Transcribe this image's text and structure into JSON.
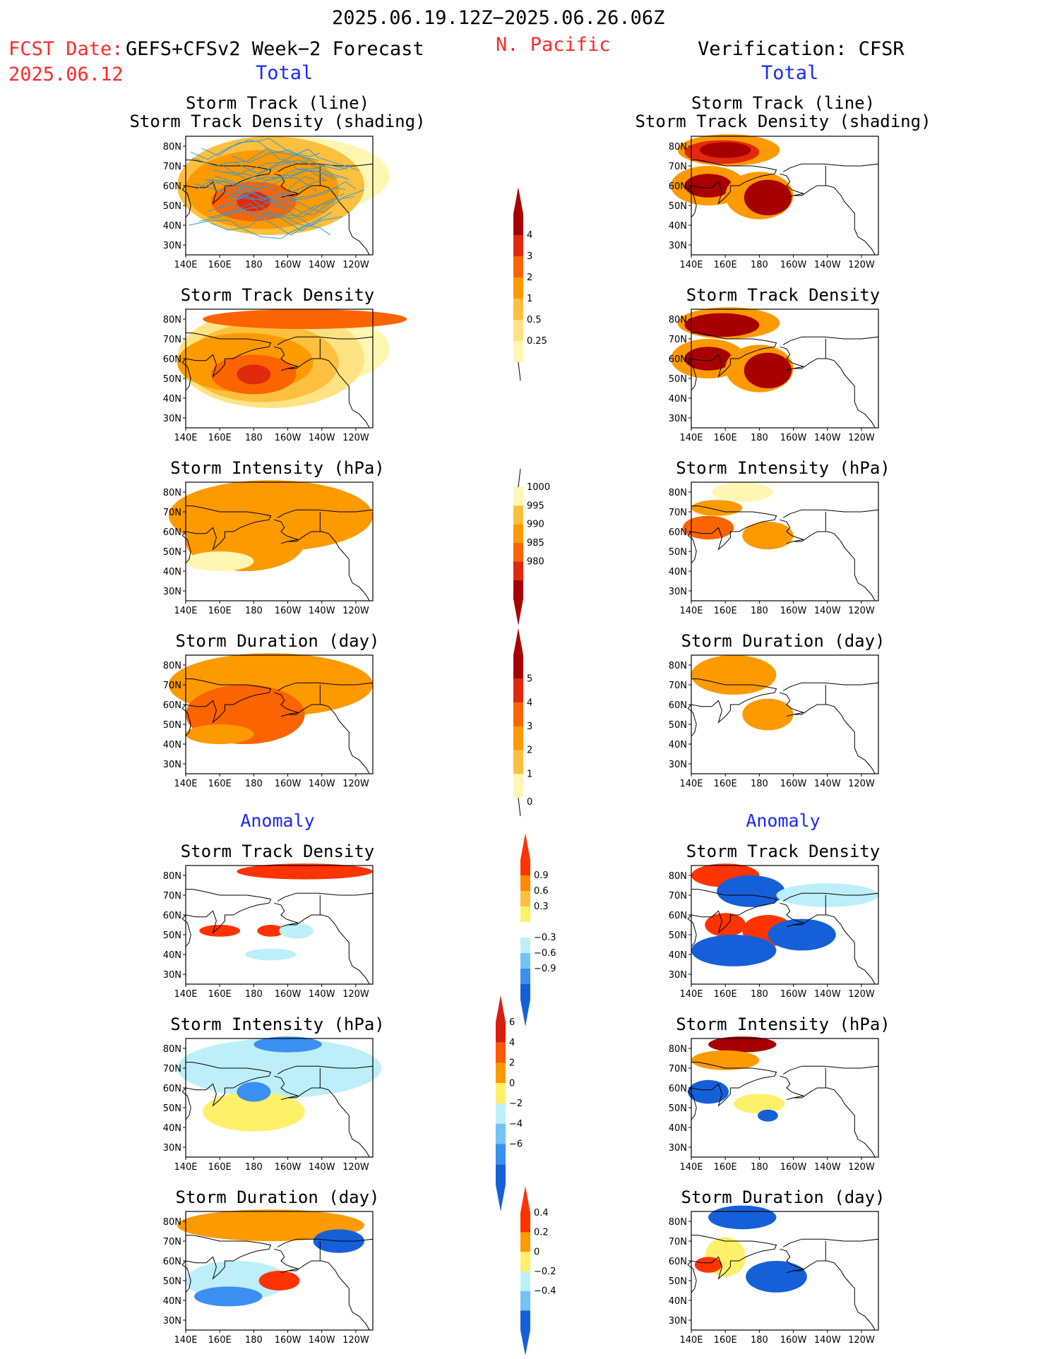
{
  "header": {
    "period": "2025.06.19.12Z−2025.06.26.06Z",
    "fcst_label": "FCST Date:",
    "fcst_model": "GEFS+CFSv2 Week−2 Forecast",
    "fcst_date": "2025.06.12",
    "region": "N. Pacific",
    "verification": "Verification: CFSR",
    "total_left": "Total",
    "total_right": "Total",
    "anomaly_left": "Anomaly",
    "anomaly_right": "Anomaly"
  },
  "panel_titles": {
    "track_line": "Storm Track (line)",
    "track_shading": "Storm Track Density (shading)",
    "density": "Storm Track Density",
    "intensity": "Storm Intensity (hPa)",
    "duration": "Storm Duration (day)"
  },
  "axes": {
    "lon_ticks": [
      "140E",
      "160E",
      "180",
      "160W",
      "140W",
      "120W"
    ],
    "lat_ticks": [
      "80N",
      "70N",
      "60N",
      "50N",
      "40N",
      "30N"
    ]
  },
  "colorbars": {
    "density": {
      "levels": [
        "0.25",
        "0.5",
        "1",
        "2",
        "3",
        "4"
      ],
      "colors": [
        "#fff6b4",
        "#ffe383",
        "#fdbf3e",
        "#fd9a00",
        "#fb6400",
        "#e12a0c",
        "#a80000"
      ]
    },
    "intensity": {
      "levels": [
        "1000",
        "995",
        "990",
        "985",
        "980"
      ],
      "colors": [
        "#fff6b4",
        "#fdbf3e",
        "#fd9a00",
        "#fb6400",
        "#e12a0c",
        "#a80000"
      ]
    },
    "duration": {
      "levels": [
        "5",
        "4",
        "3",
        "2",
        "1",
        "0"
      ],
      "colors": [
        "#a80000",
        "#e12a0c",
        "#fb6400",
        "#fd9a00",
        "#fdbf3e",
        "#fff6b4"
      ]
    },
    "anom_density": {
      "levels": [
        "0.9",
        "0.6",
        "0.3",
        "−0.3",
        "−0.6",
        "−0.9"
      ],
      "colors": [
        "#ff3300",
        "#fd8a00",
        "#fdbf3e",
        "#fff06a",
        "#ffffff",
        "#bdeffa",
        "#73c3f7",
        "#3a8ff0",
        "#1560d8"
      ]
    },
    "anom_intensity": {
      "levels": [
        "6",
        "4",
        "2",
        "0",
        "−2",
        "−4",
        "−6"
      ],
      "colors": [
        "#d81e10",
        "#fd5a00",
        "#fd9a00",
        "#fff06a",
        "#bdeffa",
        "#73c3f7",
        "#3a8ff0",
        "#1560d8"
      ]
    },
    "anom_duration": {
      "levels": [
        "0.4",
        "0.2",
        "0",
        "−0.2",
        "−0.4"
      ],
      "colors": [
        "#ff3300",
        "#fd9a00",
        "#fff06a",
        "#bdeffa",
        "#73c3f7",
        "#1560d8"
      ]
    }
  },
  "chart_data": [
    {
      "type": "heatmap",
      "panel": "forecast-total-storm-track-line",
      "title": "Storm Track (line) Storm Track Density (shading)",
      "x_range": [
        "140E",
        "110W"
      ],
      "y_range": [
        "25N",
        "85N"
      ],
      "peak_value": 3,
      "peak_location": "52N 180"
    },
    {
      "type": "heatmap",
      "panel": "verification-total-storm-track-line",
      "title": "Storm Track (line) Storm Track Density (shading)",
      "x_range": [
        "140E",
        "110W"
      ],
      "y_range": [
        "25N",
        "85N"
      ],
      "peak_value": 4,
      "peak_location": "52N 175W"
    },
    {
      "type": "heatmap",
      "panel": "forecast-total-density",
      "title": "Storm Track Density",
      "peak_value": 3,
      "peak_location": "52N 180"
    },
    {
      "type": "heatmap",
      "panel": "verification-total-density",
      "title": "Storm Track Density",
      "peak_value": 4,
      "peak_location": "52N 175W"
    },
    {
      "type": "heatmap",
      "panel": "forecast-total-intensity",
      "title": "Storm Intensity (hPa)",
      "min_value": 990,
      "max_value": 1000
    },
    {
      "type": "heatmap",
      "panel": "verification-total-intensity",
      "title": "Storm Intensity (hPa)",
      "min_value": 985,
      "max_value": 1000
    },
    {
      "type": "heatmap",
      "panel": "forecast-total-duration",
      "title": "Storm Duration (day)",
      "min_value": 2,
      "max_value": 3
    },
    {
      "type": "heatmap",
      "panel": "verification-total-duration",
      "title": "Storm Duration (day)",
      "min_value": 2,
      "max_value": 2
    },
    {
      "type": "heatmap",
      "panel": "forecast-anomaly-density",
      "title": "Storm Track Density",
      "min_value": -0.3,
      "max_value": 0.9
    },
    {
      "type": "heatmap",
      "panel": "verification-anomaly-density",
      "title": "Storm Track Density",
      "min_value": -0.9,
      "max_value": 0.9
    },
    {
      "type": "heatmap",
      "panel": "forecast-anomaly-intensity",
      "title": "Storm Intensity (hPa)",
      "min_value": -4,
      "max_value": 2
    },
    {
      "type": "heatmap",
      "panel": "verification-anomaly-intensity",
      "title": "Storm Intensity (hPa)",
      "min_value": -6,
      "max_value": 6
    },
    {
      "type": "heatmap",
      "panel": "forecast-anomaly-duration",
      "title": "Storm Duration (day)",
      "min_value": -0.4,
      "max_value": 0.4
    },
    {
      "type": "heatmap",
      "panel": "verification-anomaly-duration",
      "title": "Storm Duration (day)",
      "min_value": -0.4,
      "max_value": 0.4
    }
  ]
}
